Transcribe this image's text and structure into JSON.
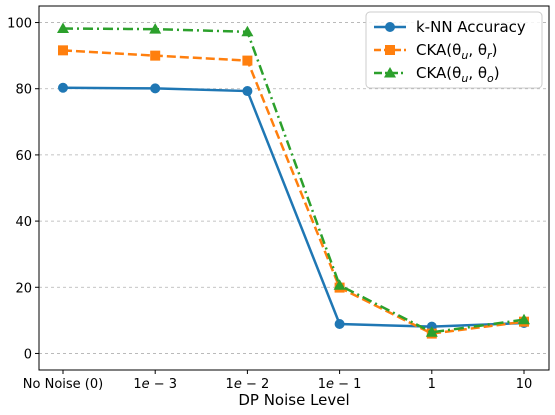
{
  "chart_data": {
    "type": "line",
    "xlabel": "DP Noise Level",
    "ylabel": "",
    "categories": [
      "No Noise (0)",
      "1e-3",
      "1e-2",
      "1e-1",
      "1",
      "10"
    ],
    "ylim": [
      -5,
      105
    ],
    "yticks": [
      0,
      20,
      40,
      60,
      80,
      100
    ],
    "grid": "horizontal dashed",
    "legend_position": "top-right",
    "series": [
      {
        "name": "k-NN Accuracy",
        "legend_main": "k-NN Accuracy",
        "legend_sub": "",
        "values": [
          80.3,
          80.1,
          79.3,
          8.9,
          8.1,
          9.2
        ],
        "color": "#1f77b4",
        "marker": "circle",
        "linestyle": "solid"
      },
      {
        "name": "CKA(θu, θr)",
        "legend_main": "CKA(θ",
        "legend_sub": "u",
        "legend_mid": ", θ",
        "legend_sub2": "r",
        "legend_end": ")",
        "values": [
          91.6,
          90.0,
          88.5,
          19.9,
          6.0,
          9.6
        ],
        "color": "#ff7f0e",
        "marker": "square",
        "linestyle": "dashed"
      },
      {
        "name": "CKA(θu, θo)",
        "legend_main": "CKA(θ",
        "legend_sub": "u",
        "legend_mid": ", θ",
        "legend_sub2": "o",
        "legend_end": ")",
        "values": [
          98.2,
          98.0,
          97.2,
          20.6,
          6.4,
          10.2
        ],
        "color": "#2ca02c",
        "marker": "triangle",
        "linestyle": "dashdot"
      }
    ]
  }
}
